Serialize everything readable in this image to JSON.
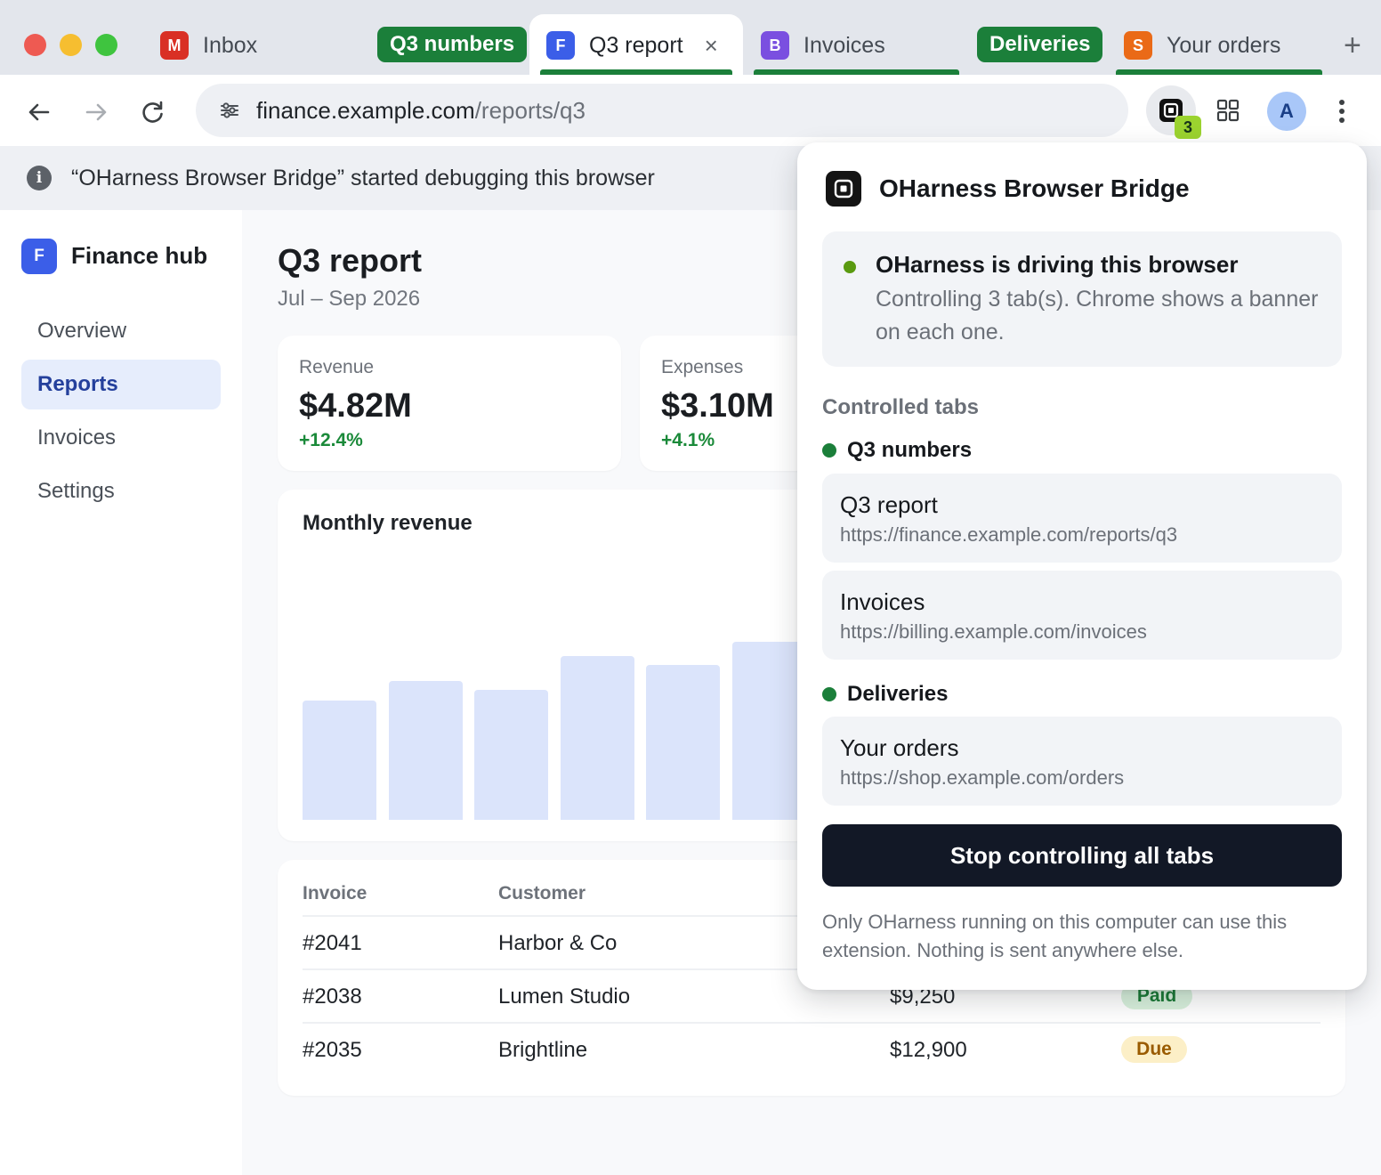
{
  "browser": {
    "tabs": [
      {
        "favicon_letter": "M",
        "favicon_color": "#d93025",
        "title": "Inbox"
      },
      {
        "group_label": "Q3 numbers",
        "group_color": "#1b7f3a"
      },
      {
        "favicon_letter": "F",
        "favicon_color": "#3b5ee8",
        "title": "Q3 report",
        "active": true
      },
      {
        "favicon_letter": "B",
        "favicon_color": "#7a4fe0",
        "title": "Invoices"
      },
      {
        "group_label": "Deliveries",
        "group_color": "#1b7f3a"
      },
      {
        "favicon_letter": "S",
        "favicon_color": "#ea6a17",
        "title": "Your orders"
      }
    ],
    "new_tab_icon": "+",
    "close_tab_icon": "×",
    "url_host": "finance.example.com",
    "url_path": "/reports/q3",
    "extension_badge": "3",
    "profile_initial": "A"
  },
  "debug_banner": {
    "text": "“OHarness Browser Bridge” started debugging this browser"
  },
  "app": {
    "brand_letter": "F",
    "brand_name": "Finance hub",
    "nav": [
      "Overview",
      "Reports",
      "Invoices",
      "Settings"
    ],
    "active_nav": "Reports",
    "title": "Q3 report",
    "subtitle": "Jul – Sep 2026",
    "kpis": [
      {
        "label": "Revenue",
        "value": "$4.82M",
        "delta": "+12.4%"
      },
      {
        "label": "Expenses",
        "value": "$3.10M",
        "delta": "+4.1%"
      }
    ],
    "chart": {
      "title": "Monthly revenue",
      "bar_fill_fractions": [
        0.67,
        0.78,
        0.73,
        0.92,
        0.87,
        1.0
      ],
      "bar_color": "#dbe4fb"
    },
    "table": {
      "columns": [
        "Invoice",
        "Customer"
      ],
      "rows": [
        {
          "invoice": "#2041",
          "customer": "Harbor & Co"
        },
        {
          "invoice": "#2038",
          "customer": "Lumen Studio",
          "amount": "$9,250",
          "status": "Paid"
        },
        {
          "invoice": "#2035",
          "customer": "Brightline",
          "amount": "$12,900",
          "status": "Due"
        }
      ]
    }
  },
  "popup": {
    "title": "OHarness Browser Bridge",
    "status_heading": "OHarness is driving this browser",
    "status_body": "Controlling 3 tab(s). Chrome shows a banner on each one.",
    "section_label": "Controlled tabs",
    "groups": [
      {
        "name": "Q3 numbers",
        "tabs": [
          {
            "title": "Q3 report",
            "url": "https://finance.example.com/reports/q3"
          },
          {
            "title": "Invoices",
            "url": "https://billing.example.com/invoices"
          }
        ]
      },
      {
        "name": "Deliveries",
        "tabs": [
          {
            "title": "Your orders",
            "url": "https://shop.example.com/orders"
          }
        ]
      }
    ],
    "stop_button": "Stop controlling all tabs",
    "footer": "Only OHarness running on this computer can use this extension. Nothing is sent anywhere else."
  }
}
